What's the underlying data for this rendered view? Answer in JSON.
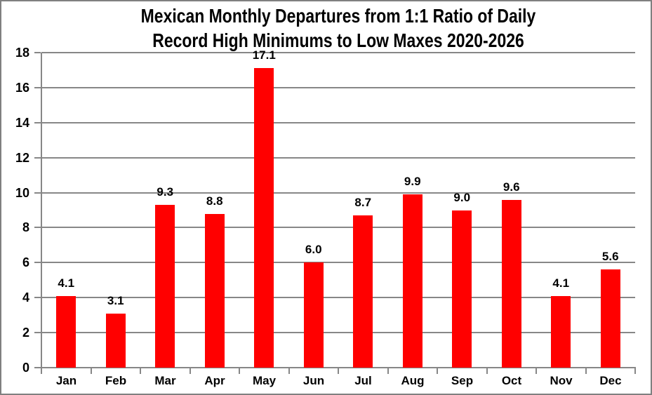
{
  "chart_data": {
    "type": "bar",
    "title": "Mexican Monthly Departures from 1:1 Ratio of Daily Record High Minimums to Low Maxes 2020-2026",
    "title_line1": "Mexican Monthly Departures from 1:1 Ratio of Daily",
    "title_line2": "Record High Minimums to Low Maxes 2020-2026",
    "categories": [
      "Jan",
      "Feb",
      "Mar",
      "Apr",
      "May",
      "Jun",
      "Jul",
      "Aug",
      "Sep",
      "Oct",
      "Nov",
      "Dec"
    ],
    "values": [
      4.1,
      3.1,
      9.3,
      8.8,
      17.1,
      6.0,
      8.7,
      9.9,
      9.0,
      9.6,
      4.1,
      5.6
    ],
    "value_labels": [
      "4.1",
      "3.1",
      "9.3",
      "8.8",
      "17.1",
      "6.0",
      "8.7",
      "9.9",
      "9.0",
      "9.6",
      "4.1",
      "5.6"
    ],
    "xlabel": "",
    "ylabel": "",
    "ylim": [
      0,
      18
    ],
    "yticks": [
      0,
      2,
      4,
      6,
      8,
      10,
      12,
      14,
      16,
      18
    ],
    "grid": true,
    "legend": false,
    "bar_color": "#FF0000",
    "grid_color": "#878787",
    "axis_color": "#878787",
    "text_color": "#000000",
    "frame_border_color": "#808080",
    "background_color": "#FFFFFF"
  }
}
